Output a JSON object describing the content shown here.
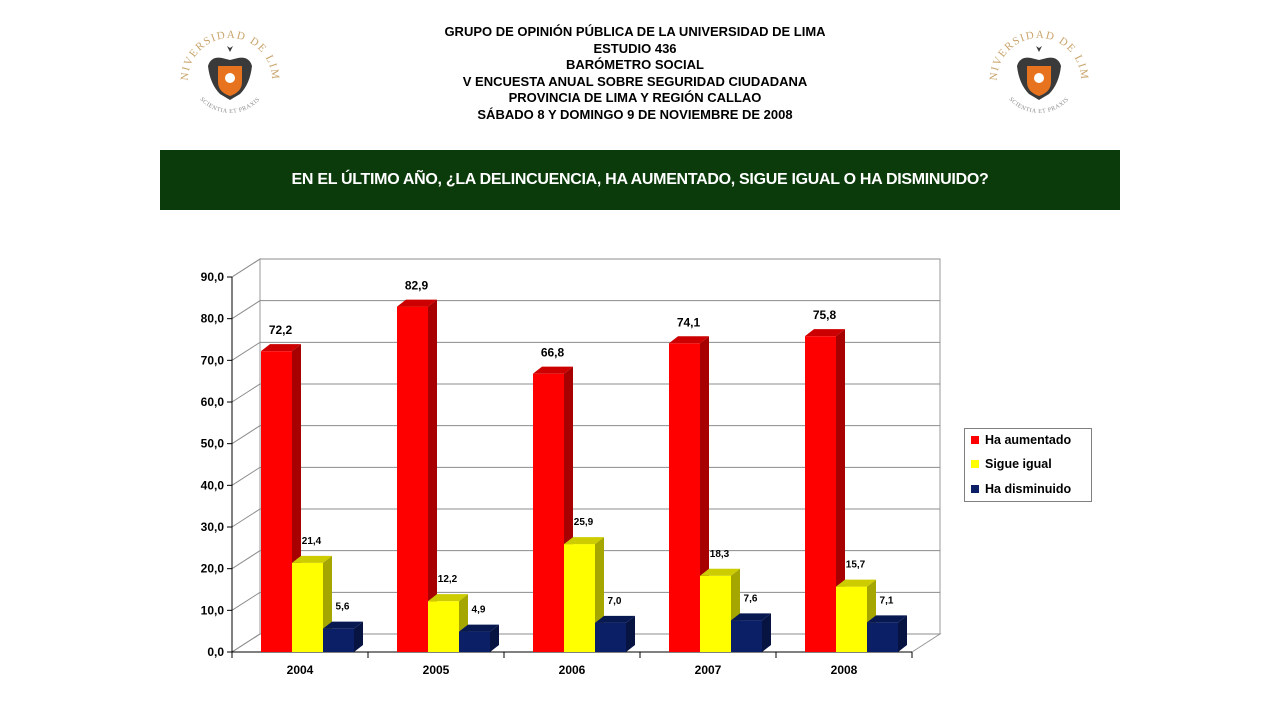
{
  "header": {
    "lines": [
      "GRUPO DE OPINIÓN PÚBLICA DE LA UNIVERSIDAD DE LIMA",
      "ESTUDIO 436",
      "BARÓMETRO SOCIAL",
      "V ENCUESTA ANUAL SOBRE SEGURIDAD CIUDADANA",
      "PROVINCIA DE LIMA Y REGIÓN CALLAO",
      "SÁBADO 8 Y DOMINGO 9 DE NOVIEMBRE DE 2008"
    ]
  },
  "logo": {
    "arc_text": "UNIVERSIDAD DE LIMA",
    "motto": "SCIENTIA ET PRAXIS",
    "colors": {
      "text": "#c9a46a",
      "shield": "#e8731f",
      "eagle": "#3a3a3a"
    }
  },
  "banner": {
    "question": "EN EL ÚLTIMO AÑO, ¿LA DELINCUENCIA, HA AUMENTADO, SIGUE IGUAL O HA DISMINUIDO?",
    "bg_color": "#0b3a0b"
  },
  "chart_data": {
    "type": "bar",
    "categories": [
      "2004",
      "2005",
      "2006",
      "2007",
      "2008"
    ],
    "series": [
      {
        "name": "Ha aumentado",
        "color": "#ff0000",
        "values": [
          72.2,
          82.9,
          66.8,
          74.1,
          75.8
        ],
        "labels": [
          "72,2",
          "82,9",
          "66,8",
          "74,1",
          "75,8"
        ]
      },
      {
        "name": "Sigue igual",
        "color": "#ffff00",
        "values": [
          21.4,
          12.2,
          25.9,
          18.3,
          15.7
        ],
        "labels": [
          "21,4",
          "12,2",
          "25,9",
          "18,3",
          "15,7"
        ]
      },
      {
        "name": "Ha disminuido",
        "color": "#0a1f66",
        "values": [
          5.6,
          4.9,
          7.0,
          7.6,
          7.1
        ],
        "labels": [
          "5,6",
          "4,9",
          "7,0",
          "7,6",
          "7,1"
        ]
      }
    ],
    "ylim": [
      0,
      90
    ],
    "yticks": [
      "0,0",
      "10,0",
      "20,0",
      "30,0",
      "40,0",
      "50,0",
      "60,0",
      "70,0",
      "80,0",
      "90,0"
    ],
    "grid": true,
    "legend_position": "right",
    "style": "3d"
  }
}
